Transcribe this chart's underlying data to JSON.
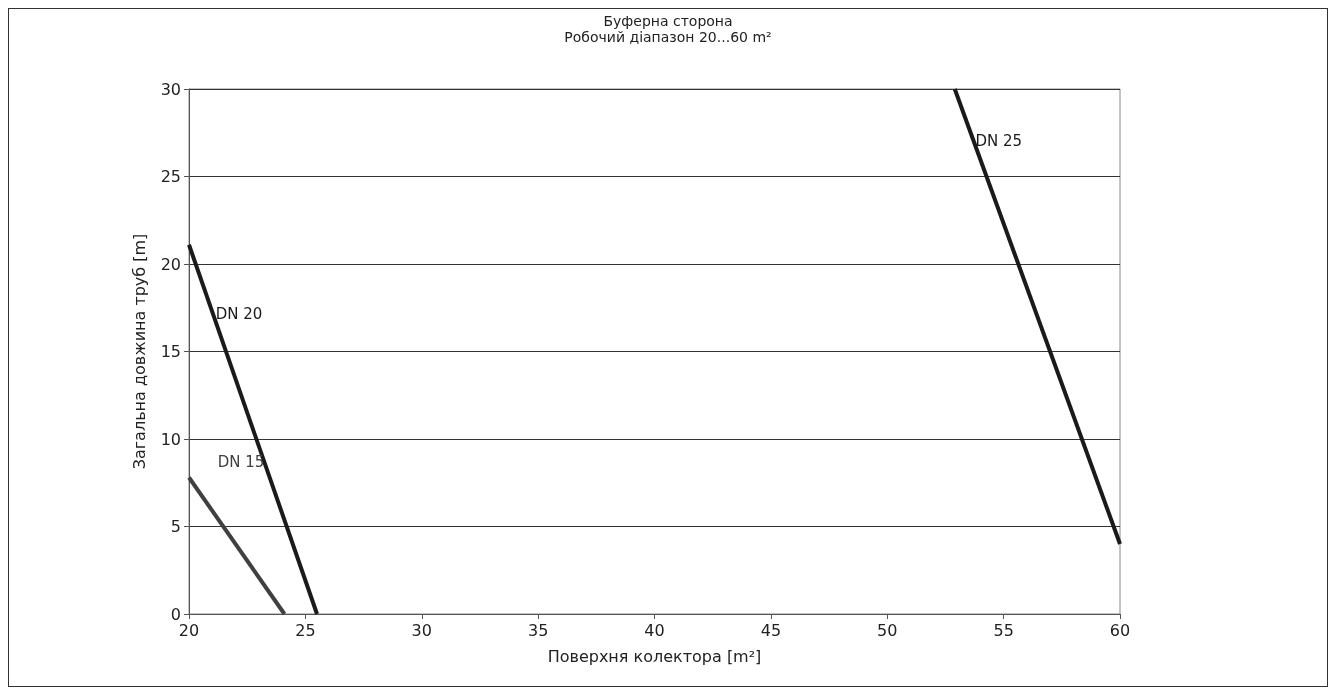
{
  "chart_data": {
    "type": "line",
    "title": "Буферна сторона",
    "subtitle": "Робочий діапазон 20...60 m²",
    "xlabel": "Поверхня колектора [m²]",
    "ylabel": "Загальна довжина труб [m]",
    "series": [
      {
        "name": "DN 15",
        "color": "#404040",
        "x": [
          20,
          24.1
        ],
        "values": [
          7.8,
          0
        ]
      },
      {
        "name": "DN 20",
        "color": "#1a1a1a",
        "x": [
          20,
          25.5
        ],
        "values": [
          21.1,
          0
        ]
      },
      {
        "name": "DN 25",
        "color": "#1a1a1a",
        "x": [
          52.9,
          60
        ],
        "values": [
          30,
          4
        ]
      }
    ],
    "xlim": [
      20,
      60
    ],
    "xticks": [
      20,
      25,
      30,
      35,
      40,
      45,
      50,
      55,
      60
    ],
    "ylim": [
      0,
      30
    ],
    "yticks": [
      0,
      5,
      10,
      15,
      20,
      25,
      30
    ],
    "grid": "y",
    "legend": false,
    "marker": "none",
    "line_style": "solid"
  }
}
